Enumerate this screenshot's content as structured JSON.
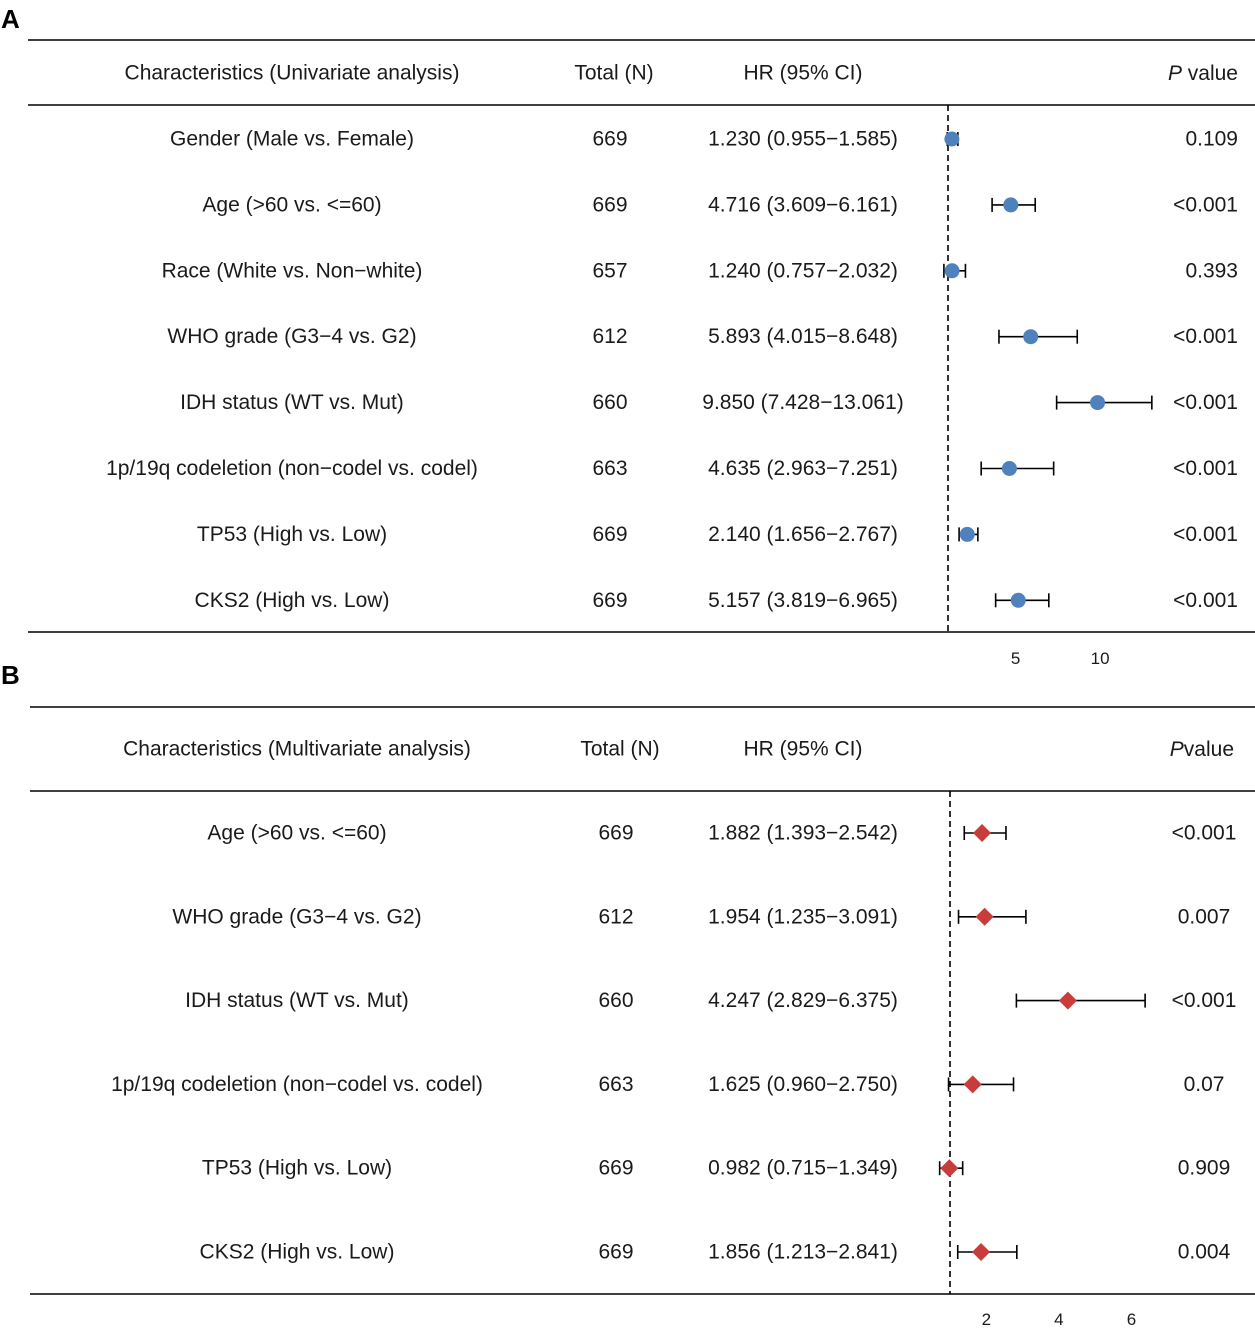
{
  "chart_data": [
    {
      "type": "forest",
      "panel": "A",
      "headers": {
        "characteristics": "Characteristics (Univariate analysis)",
        "total": "Total (N)",
        "hr": "HR (95% CI)",
        "p_italic": "P",
        "p_rest": " value"
      },
      "reference_line": 1,
      "ticks": [
        5,
        10
      ],
      "rows": [
        {
          "label": "Gender (Male vs. Female)",
          "total": "669",
          "hr_text": "1.230 (0.955−1.585)",
          "hr": 1.23,
          "lo": 0.955,
          "hi": 1.585,
          "p": "0.109"
        },
        {
          "label": "Age (>60 vs. <=60)",
          "total": "669",
          "hr_text": "4.716 (3.609−6.161)",
          "hr": 4.716,
          "lo": 3.609,
          "hi": 6.161,
          "p": "<0.001"
        },
        {
          "label": "Race (White vs. Non−white)",
          "total": "657",
          "hr_text": "1.240 (0.757−2.032)",
          "hr": 1.24,
          "lo": 0.757,
          "hi": 2.032,
          "p": "0.393"
        },
        {
          "label": "WHO grade (G3−4 vs. G2)",
          "total": "612",
          "hr_text": "5.893 (4.015−8.648)",
          "hr": 5.893,
          "lo": 4.015,
          "hi": 8.648,
          "p": "<0.001"
        },
        {
          "label": "IDH status (WT vs. Mut)",
          "total": "660",
          "hr_text": "9.850 (7.428−13.061)",
          "hr": 9.85,
          "lo": 7.428,
          "hi": 13.061,
          "p": "<0.001"
        },
        {
          "label": "1p/19q codeletion (non−codel vs. codel)",
          "total": "663",
          "hr_text": "4.635 (2.963−7.251)",
          "hr": 4.635,
          "lo": 2.963,
          "hi": 7.251,
          "p": "<0.001"
        },
        {
          "label": "TP53 (High vs. Low)",
          "total": "669",
          "hr_text": "2.140 (1.656−2.767)",
          "hr": 2.14,
          "lo": 1.656,
          "hi": 2.767,
          "p": "<0.001"
        },
        {
          "label": "CKS2 (High vs. Low)",
          "total": "669",
          "hr_text": "5.157 (3.819−6.965)",
          "hr": 5.157,
          "lo": 3.819,
          "hi": 6.965,
          "p": "<0.001"
        }
      ],
      "marker": "circle",
      "color": "#4f81bd"
    },
    {
      "type": "forest",
      "panel": "B",
      "headers": {
        "characteristics": "Characteristics (Multivariate analysis)",
        "total": "Total (N)",
        "hr": "HR (95% CI)",
        "p_italic": "P",
        "p_rest": "value"
      },
      "reference_line": 1,
      "ticks": [
        2,
        4,
        6
      ],
      "rows": [
        {
          "label": "Age (>60 vs. <=60)",
          "total": "669",
          "hr_text": "1.882 (1.393−2.542)",
          "hr": 1.882,
          "lo": 1.393,
          "hi": 2.542,
          "p": "<0.001"
        },
        {
          "label": "WHO grade (G3−4 vs. G2)",
          "total": "612",
          "hr_text": "1.954 (1.235−3.091)",
          "hr": 1.954,
          "lo": 1.235,
          "hi": 3.091,
          "p": "0.007"
        },
        {
          "label": "IDH status (WT vs. Mut)",
          "total": "660",
          "hr_text": "4.247 (2.829−6.375)",
          "hr": 4.247,
          "lo": 2.829,
          "hi": 6.375,
          "p": "<0.001"
        },
        {
          "label": "1p/19q codeletion (non−codel vs. codel)",
          "total": "663",
          "hr_text": "1.625 (0.960−2.750)",
          "hr": 1.625,
          "lo": 0.96,
          "hi": 2.75,
          "p": "0.07"
        },
        {
          "label": "TP53 (High vs. Low)",
          "total": "669",
          "hr_text": "0.982 (0.715−1.349)",
          "hr": 0.982,
          "lo": 0.715,
          "hi": 1.349,
          "p": "0.909"
        },
        {
          "label": "CKS2 (High vs. Low)",
          "total": "669",
          "hr_text": "1.856 (1.213−2.841)",
          "hr": 1.856,
          "lo": 1.213,
          "hi": 2.841,
          "p": "0.004"
        }
      ],
      "marker": "diamond",
      "color": "#c83c3c"
    }
  ]
}
